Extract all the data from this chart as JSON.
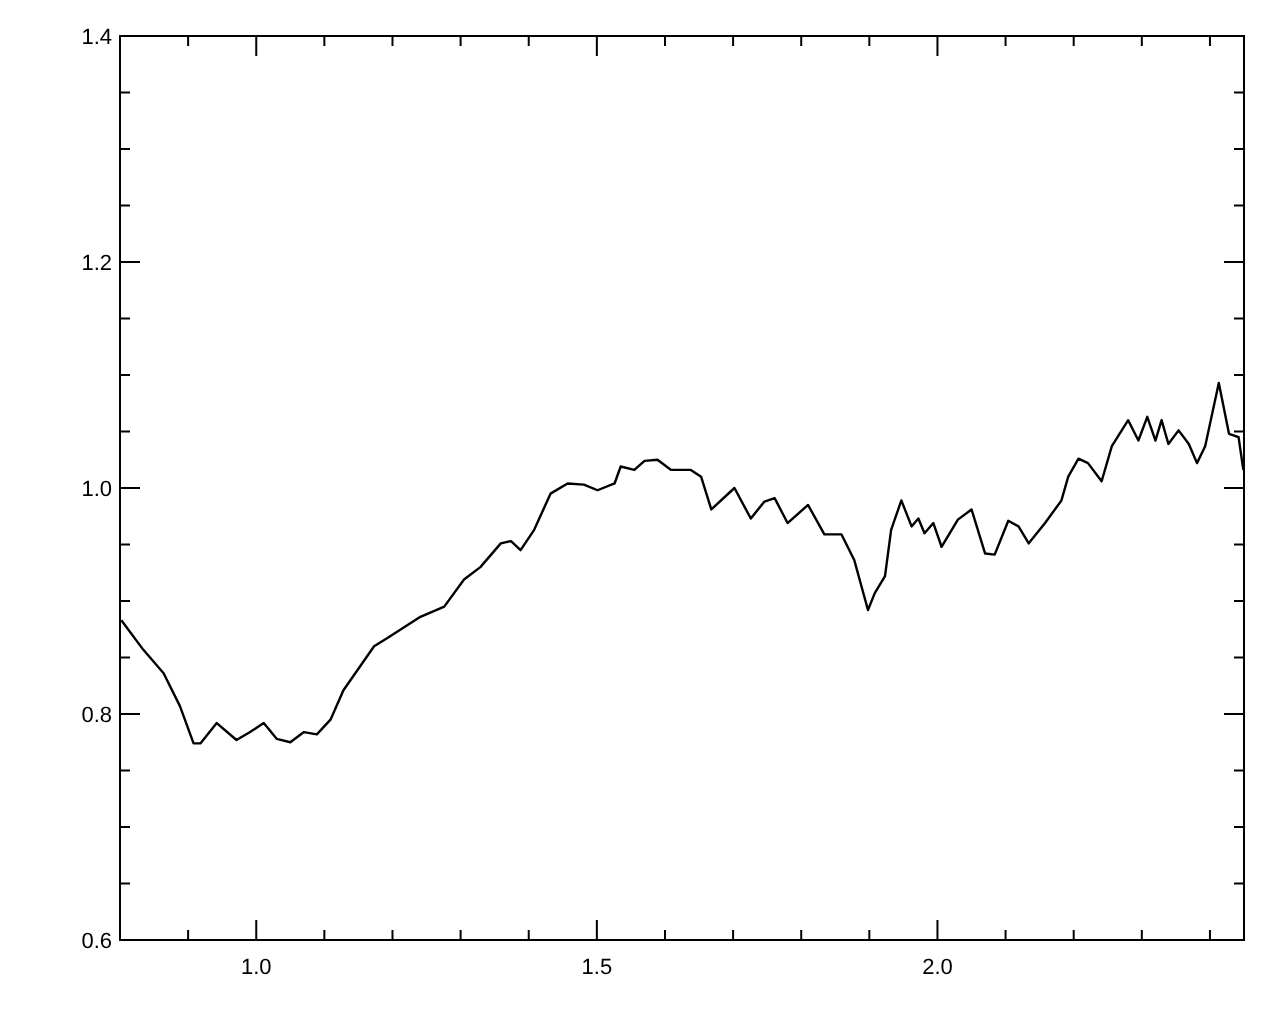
{
  "chart_data": {
    "type": "line",
    "xlim": [
      0.8,
      2.45
    ],
    "ylim": [
      0.6,
      1.4
    ],
    "xticks": [
      {
        "value": 0.9,
        "label": null
      },
      {
        "value": 1,
        "label": "1.0"
      },
      {
        "value": 1.1,
        "label": null
      },
      {
        "value": 1.2,
        "label": null
      },
      {
        "value": 1.3,
        "label": null
      },
      {
        "value": 1.4,
        "label": null
      },
      1.5,
      {
        "value": 1.6,
        "label": null
      },
      {
        "value": 1.7,
        "label": null
      },
      {
        "value": 1.8,
        "label": null
      },
      {
        "value": 1.9,
        "label": null
      },
      {
        "value": 2,
        "label": "2.0"
      },
      {
        "value": 2.1,
        "label": null
      },
      {
        "value": 2.2,
        "label": null
      },
      {
        "value": 2.3,
        "label": null
      },
      {
        "value": 2.4,
        "label": null
      }
    ],
    "yticks": [
      0.6,
      {
        "value": 0.65,
        "label": null
      },
      {
        "value": 0.7,
        "label": null
      },
      {
        "value": 0.75,
        "label": null
      },
      0.8,
      {
        "value": 0.85,
        "label": null
      },
      {
        "value": 0.9,
        "label": null
      },
      {
        "value": 0.95,
        "label": null
      },
      {
        "value": 1,
        "label": "1.0"
      },
      {
        "value": 1.05,
        "label": null
      },
      {
        "value": 1.1,
        "label": null
      },
      {
        "value": 1.15,
        "label": null
      },
      1.2,
      {
        "value": 1.25,
        "label": null
      },
      {
        "value": 1.3,
        "label": null
      },
      {
        "value": 1.35,
        "label": null
      },
      1.4
    ],
    "grid": false,
    "marker": "none",
    "line_style": "solid",
    "series": [
      {
        "color": "#000000",
        "x": [
          0.802,
          0.834,
          0.864,
          0.888,
          0.908,
          0.918,
          0.942,
          0.971,
          0.991,
          1.011,
          1.03,
          1.05,
          1.07,
          1.089,
          1.109,
          1.128,
          1.173,
          1.192,
          1.241,
          1.276,
          1.305,
          1.329,
          1.359,
          1.374,
          1.388,
          1.408,
          1.432,
          1.457,
          1.481,
          1.501,
          1.526,
          1.535,
          1.555,
          1.57,
          1.589,
          1.609,
          1.638,
          1.653,
          1.668,
          1.702,
          1.726,
          1.746,
          1.761,
          1.78,
          1.81,
          1.834,
          1.859,
          1.878,
          1.898,
          1.908,
          1.923,
          1.932,
          1.947,
          1.962,
          1.972,
          1.981,
          1.994,
          2.006,
          2.03,
          2.05,
          2.07,
          2.084,
          2.104,
          2.119,
          2.134,
          2.158,
          2.182,
          2.192,
          2.207,
          2.221,
          2.241,
          2.256,
          2.28,
          2.295,
          2.308,
          2.32,
          2.329,
          2.339,
          2.354,
          2.369,
          2.381,
          2.393,
          2.413,
          2.428,
          2.442,
          2.449
        ],
        "values": [
          0.883,
          0.857,
          0.836,
          0.807,
          0.774,
          0.774,
          0.792,
          0.777,
          0.784,
          0.792,
          0.778,
          0.775,
          0.784,
          0.782,
          0.795,
          0.821,
          0.86,
          0.867,
          0.886,
          0.895,
          0.919,
          0.93,
          0.951,
          0.953,
          0.945,
          0.963,
          0.995,
          1.004,
          1.003,
          0.998,
          1.004,
          1.019,
          1.016,
          1.024,
          1.025,
          1.016,
          1.016,
          1.01,
          0.981,
          1.0,
          0.973,
          0.988,
          0.991,
          0.969,
          0.985,
          0.959,
          0.959,
          0.936,
          0.892,
          0.907,
          0.922,
          0.963,
          0.989,
          0.966,
          0.973,
          0.96,
          0.969,
          0.948,
          0.972,
          0.981,
          0.942,
          0.941,
          0.971,
          0.966,
          0.951,
          0.969,
          0.989,
          1.01,
          1.026,
          1.022,
          1.006,
          1.037,
          1.06,
          1.042,
          1.063,
          1.042,
          1.06,
          1.039,
          1.051,
          1.039,
          1.022,
          1.037,
          1.093,
          1.048,
          1.045,
          1.016
        ]
      }
    ]
  }
}
